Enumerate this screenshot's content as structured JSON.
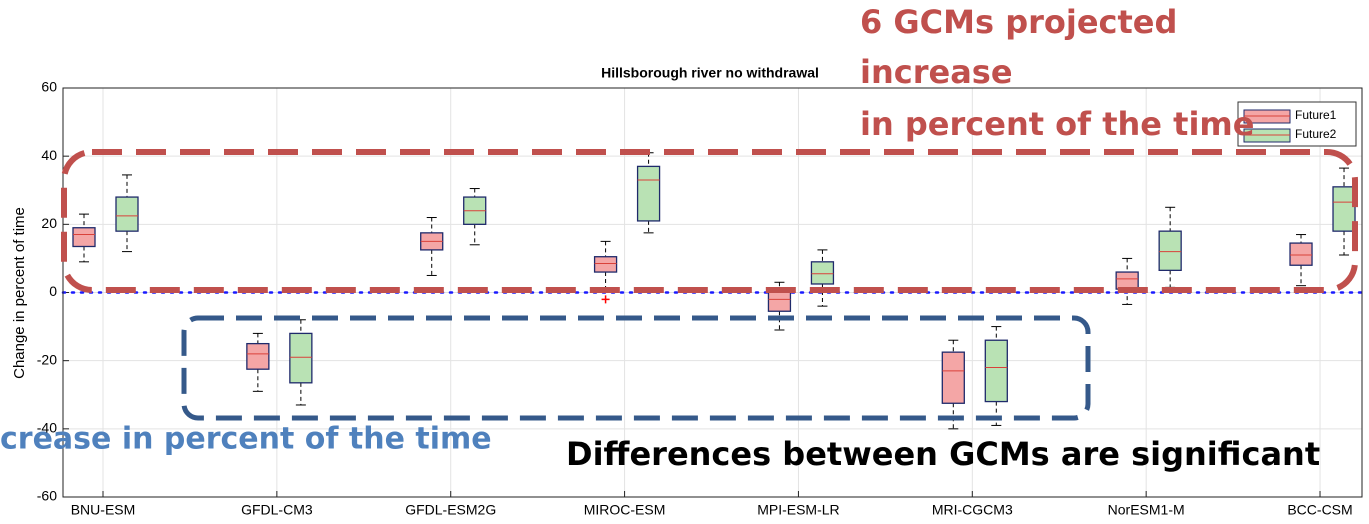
{
  "chart_data": {
    "type": "box",
    "title": "Hillsborough river no withdrawal",
    "y_label": "Change in percent of time",
    "categories": [
      "BNU-ESM",
      "GFDL-CM3",
      "GFDL-ESM2G",
      "MIROC-ESM",
      "MPI-ESM-LR",
      "MRI-CGCM3",
      "NorESM1-M",
      "BCC-CSM"
    ],
    "series": [
      {
        "name": "Future1",
        "color": "#f4a6a6",
        "min": [
          9,
          -29,
          5,
          0,
          -11,
          -40,
          -3.5,
          2
        ],
        "q1": [
          13.5,
          -22.5,
          12.5,
          6,
          -5.5,
          -32.5,
          1,
          8
        ],
        "median": [
          17,
          -18,
          15,
          8.5,
          -2,
          -23,
          4,
          11
        ],
        "q3": [
          19,
          -15,
          17.5,
          10.5,
          1,
          -17.5,
          6,
          14.5
        ],
        "max": [
          23,
          -12,
          22,
          15,
          3,
          -14,
          10,
          17
        ],
        "outliers": [
          null,
          null,
          null,
          -2,
          null,
          null,
          null,
          null
        ]
      },
      {
        "name": "Future2",
        "color": "#b9e2b4",
        "min": [
          12,
          -33,
          14,
          17.5,
          -4,
          -39,
          1.5,
          11
        ],
        "q1": [
          18,
          -26.5,
          20,
          21,
          2.5,
          -32,
          6.5,
          18
        ],
        "median": [
          22.5,
          -19,
          24,
          33,
          5.5,
          -22,
          12,
          26.5
        ],
        "q3": [
          28,
          -12,
          28,
          37,
          9,
          -14,
          18,
          31
        ],
        "max": [
          34.5,
          -8,
          30.5,
          41,
          12.5,
          -10,
          25,
          36.5
        ],
        "outliers": [
          null,
          null,
          null,
          null,
          null,
          null,
          null,
          null
        ]
      }
    ],
    "ylim": [
      -60,
      60
    ],
    "yticks": [
      -60,
      -40,
      -20,
      0,
      20,
      40,
      60
    ],
    "grid": true,
    "reference_line": {
      "value": 0,
      "color": "#1a1aff"
    },
    "box_edge_color": "#1f2a6b",
    "median_color": "#d9413a",
    "outlier_color": "#ff0000",
    "annotations": {
      "increase": [
        "6 GCMs projected",
        "increase",
        "in percent of the time"
      ],
      "decrease": "crease in percent of the time",
      "differences": "Differences between GCMs are significant"
    }
  }
}
